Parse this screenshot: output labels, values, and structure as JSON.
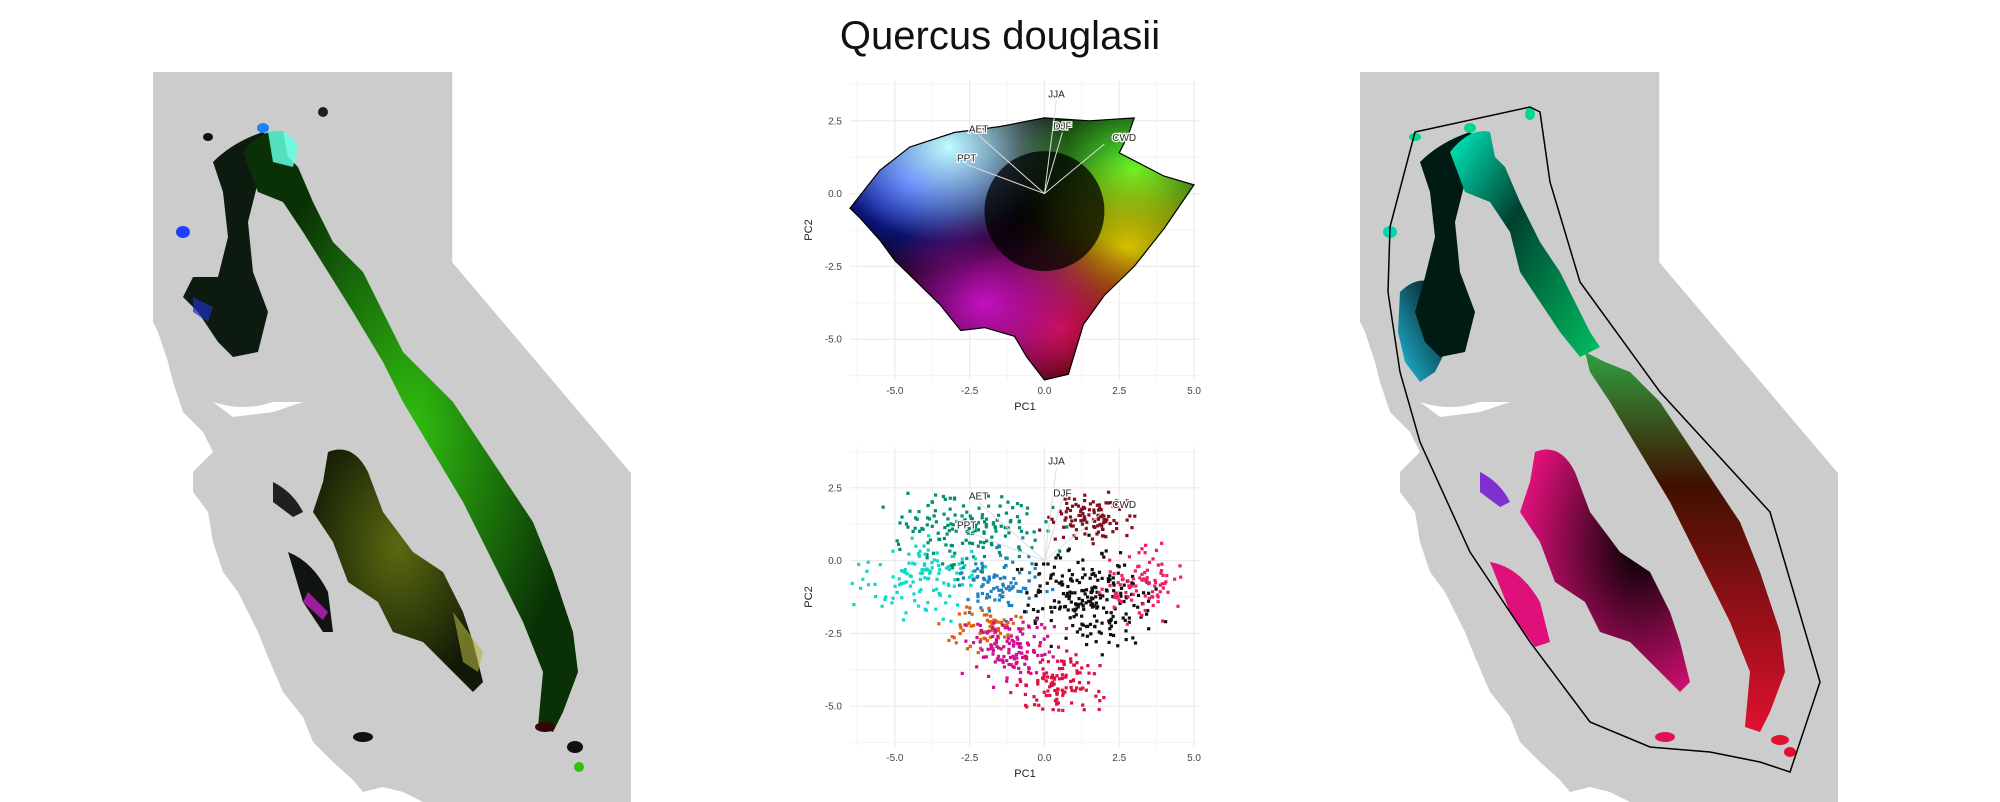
{
  "figure": {
    "title": "Quercus douglasii",
    "colors": {
      "range_background": "#cccccc",
      "state_line": "#ffffff",
      "grid": "#ebebeb",
      "hull": "#000000"
    }
  },
  "maps": {
    "left": {
      "description_role": "climate-colored species range (raw PCA colors)"
    },
    "right": {
      "description_role": "smoothed color range with convex hull outline"
    }
  },
  "chart_data": [
    {
      "type": "scatter",
      "title": "",
      "xlabel": "PC1",
      "ylabel": "PC2",
      "xlim": [
        -6.5,
        5.2
      ],
      "ylim": [
        -6.4,
        3.9
      ],
      "x_ticks": [
        "-5.0",
        "-2.5",
        "0.0",
        "2.5",
        "5.0"
      ],
      "y_ticks": [
        "2.5",
        "0.0",
        "-2.5",
        "-5.0"
      ],
      "grid": true,
      "vectors": [
        {
          "name": "JJA",
          "x": 0.4,
          "y": 3.2
        },
        {
          "name": "DJF",
          "x": 0.6,
          "y": 2.1
        },
        {
          "name": "AET",
          "x": -2.2,
          "y": 2.0
        },
        {
          "name": "PPT",
          "x": -2.6,
          "y": 1.0
        },
        {
          "name": "CWD",
          "x": 2.0,
          "y": 1.7
        }
      ],
      "hull": [
        [
          -6.5,
          -0.5
        ],
        [
          -5.5,
          0.8
        ],
        [
          -4.5,
          1.6
        ],
        [
          -3.0,
          2.1
        ],
        [
          -1.5,
          2.3
        ],
        [
          0.0,
          2.6
        ],
        [
          1.5,
          2.5
        ],
        [
          3.0,
          2.6
        ],
        [
          2.8,
          2.0
        ],
        [
          2.5,
          1.4
        ],
        [
          4.0,
          0.6
        ],
        [
          5.0,
          0.3
        ],
        [
          4.0,
          -1.2
        ],
        [
          3.0,
          -2.5
        ],
        [
          2.0,
          -3.5
        ],
        [
          1.3,
          -4.5
        ],
        [
          0.8,
          -6.2
        ],
        [
          0.0,
          -6.4
        ],
        [
          -0.6,
          -5.6
        ],
        [
          -1.0,
          -4.9
        ],
        [
          -2.0,
          -4.6
        ],
        [
          -2.8,
          -4.7
        ],
        [
          -3.5,
          -3.8
        ],
        [
          -4.5,
          -2.8
        ],
        [
          -5.0,
          -2.3
        ],
        [
          -5.5,
          -1.6
        ],
        [
          -6.2,
          -0.8
        ]
      ],
      "color_regions": [
        {
          "name": "blue",
          "color": "#1a2bff",
          "x": -4.5,
          "y": 0.5
        },
        {
          "name": "cyan-white",
          "color": "#bffcff",
          "x": -3.2,
          "y": 1.6
        },
        {
          "name": "green",
          "color": "#55ff30",
          "x": 3.0,
          "y": 0.8
        },
        {
          "name": "yellow",
          "color": "#d8c000",
          "x": 2.8,
          "y": -1.8
        },
        {
          "name": "red",
          "color": "#d01030",
          "x": 0.5,
          "y": -4.6
        },
        {
          "name": "magenta",
          "color": "#c010c0",
          "x": -2.0,
          "y": -3.8
        }
      ]
    },
    {
      "type": "scatter",
      "title": "",
      "xlabel": "PC1",
      "ylabel": "PC2",
      "xlim": [
        -6.5,
        5.2
      ],
      "ylim": [
        -6.4,
        3.9
      ],
      "x_ticks": [
        "-5.0",
        "-2.5",
        "0.0",
        "2.5",
        "5.0"
      ],
      "y_ticks": [
        "2.5",
        "0.0",
        "-2.5",
        "-5.0"
      ],
      "grid": true,
      "vectors": [
        {
          "name": "JJA",
          "x": 0.4,
          "y": 3.2
        },
        {
          "name": "DJF",
          "x": 0.6,
          "y": 2.1
        },
        {
          "name": "AET",
          "x": -2.2,
          "y": 2.0
        },
        {
          "name": "PPT",
          "x": -2.6,
          "y": 1.0
        },
        {
          "name": "CWD",
          "x": 2.0,
          "y": 1.7
        }
      ],
      "clusters": [
        {
          "name": "teal",
          "color": "#009070",
          "cx": -2.5,
          "cy": 1.0,
          "sx": 1.6,
          "sy": 0.8,
          "n": 160
        },
        {
          "name": "cyan",
          "color": "#10d8c8",
          "cx": -4.0,
          "cy": -0.6,
          "sx": 1.4,
          "sy": 0.9,
          "n": 120
        },
        {
          "name": "steel-blue",
          "color": "#2080c0",
          "cx": -1.5,
          "cy": -0.8,
          "sx": 1.0,
          "sy": 0.8,
          "n": 90
        },
        {
          "name": "orange",
          "color": "#e06010",
          "cx": -2.0,
          "cy": -2.3,
          "sx": 0.8,
          "sy": 0.6,
          "n": 70
        },
        {
          "name": "dark-red",
          "color": "#801020",
          "cx": 1.5,
          "cy": 1.5,
          "sx": 1.0,
          "sy": 0.6,
          "n": 110
        },
        {
          "name": "black",
          "color": "#101010",
          "cx": 1.5,
          "cy": -1.3,
          "sx": 1.4,
          "sy": 1.2,
          "n": 220
        },
        {
          "name": "magenta",
          "color": "#d01090",
          "cx": -1.0,
          "cy": -3.0,
          "sx": 1.1,
          "sy": 0.8,
          "n": 130
        },
        {
          "name": "crimson",
          "color": "#e01040",
          "cx": 0.5,
          "cy": -4.2,
          "sx": 0.9,
          "sy": 0.8,
          "n": 110
        },
        {
          "name": "rose",
          "color": "#f02060",
          "cx": 3.3,
          "cy": -0.8,
          "sx": 1.0,
          "sy": 0.8,
          "n": 90
        }
      ]
    }
  ]
}
